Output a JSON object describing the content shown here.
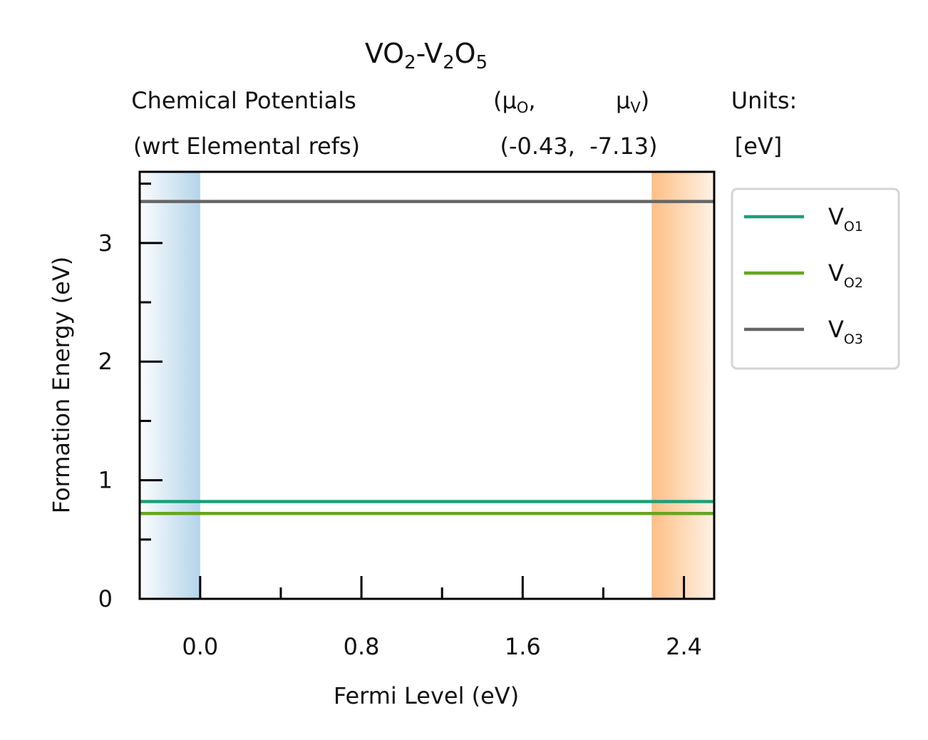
{
  "chart_data": {
    "type": "line",
    "title": {
      "base1": "VO",
      "sub1": "2",
      "mid": "-V",
      "sub2": "2",
      "base2": "O",
      "sub3": "5"
    },
    "header": {
      "left_line1": "Chemical Potentials",
      "left_line2": "(wrt Elemental refs)",
      "mu_o_open": "(μ",
      "mu_o_sub": "O",
      "mu_o_close": ",",
      "mu_v": "μ",
      "mu_v_sub": "V",
      "mu_v_close": ")",
      "values_line": "(-0.43,  -7.13)",
      "units_line1": "Units:",
      "units_line2": "[eV]"
    },
    "xlabel": "Fermi Level (eV)",
    "ylabel": "Formation Energy (eV)",
    "xlim": [
      -0.3,
      2.55
    ],
    "ylim": [
      0,
      3.6
    ],
    "xticks": [
      0.0,
      0.8,
      1.6,
      2.4
    ],
    "xtick_labels": [
      "0.0",
      "0.8",
      "1.6",
      "2.4"
    ],
    "yticks": [
      0,
      1,
      2,
      3
    ],
    "ytick_labels": [
      "0",
      "1",
      "2",
      "3"
    ],
    "vbm": 0.0,
    "cbm": 2.24,
    "vbm_color": "#b4d4ea",
    "cbm_color": "#fdbf86",
    "series": [
      {
        "name": "V",
        "sub": "O1",
        "color": "#1f9e79",
        "x": [
          -0.3,
          2.55
        ],
        "y": [
          0.82,
          0.82
        ]
      },
      {
        "name": "V",
        "sub": "O2",
        "color": "#66a61e",
        "x": [
          -0.3,
          2.55
        ],
        "y": [
          0.72,
          0.72
        ]
      },
      {
        "name": "V",
        "sub": "O3",
        "color": "#666666",
        "x": [
          -0.3,
          2.55
        ],
        "y": [
          3.35,
          3.35
        ]
      }
    ],
    "legend_position": "upper-right outside"
  }
}
